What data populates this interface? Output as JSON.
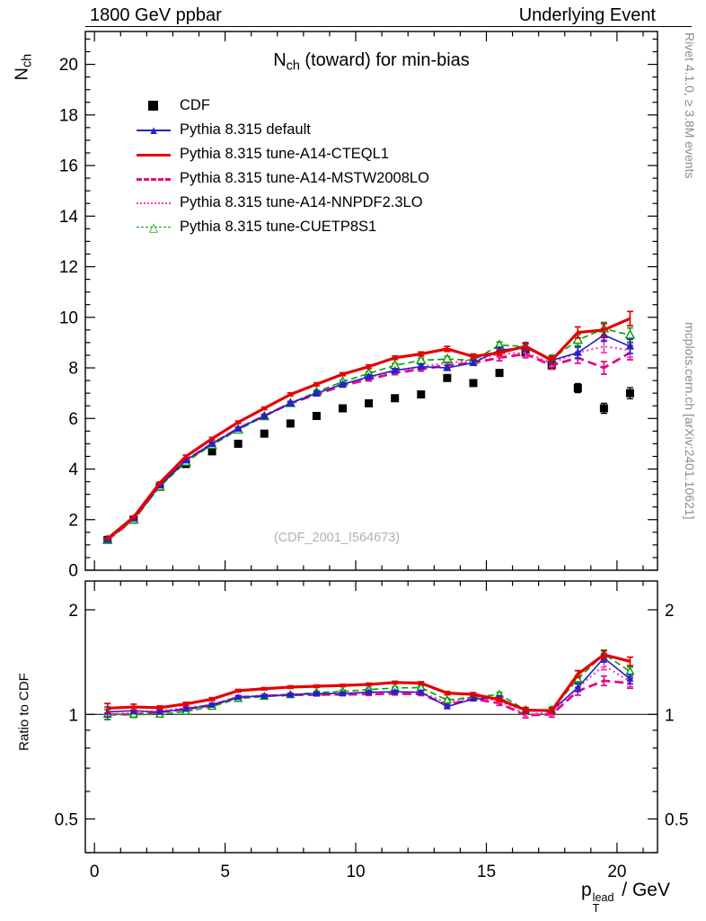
{
  "header": {
    "left": "1800 GeV ppbar",
    "right": "Underlying Event"
  },
  "title": {
    "pre": "N",
    "sub": "ch",
    "post": " (toward) for min-bias"
  },
  "watermark": "(CDF_2001_I564673)",
  "side_notes": {
    "top": "Rivet 4.1.0, ≥ 3.8M events",
    "bottom": "mcplots.cern.ch [arXiv:2401.10621]"
  },
  "axes": {
    "x_label": {
      "pre": "p",
      "sup": "lead",
      "sub": "T",
      "post": " / GeV"
    },
    "y_label": {
      "pre": "N",
      "sub": "ch"
    },
    "ratio_label": "Ratio to CDF",
    "x_ticks": [
      0,
      5,
      10,
      15,
      20
    ],
    "y_ticks": [
      0,
      2,
      4,
      6,
      8,
      10,
      12,
      14,
      16,
      18,
      20
    ],
    "ratio_ticks": [
      "0.5",
      "1",
      "2"
    ]
  },
  "legend": [
    {
      "label": "CDF"
    },
    {
      "label": "Pythia 8.315 default"
    },
    {
      "label": "Pythia 8.315 tune-A14-CTEQL1"
    },
    {
      "label": "Pythia 8.315 tune-A14-MSTW2008LO"
    },
    {
      "label": "Pythia 8.315 tune-A14-NNPDF2.3LO"
    },
    {
      "label": "Pythia 8.315 tune-CUETP8S1"
    }
  ],
  "chart_data": {
    "type": "line",
    "title": "N_ch (toward) for min-bias",
    "xlabel": "p_T^lead / GeV",
    "ylabel": "N_ch",
    "ratio_label": "Ratio to CDF",
    "x_range": [
      -0.35,
      21.55
    ],
    "y_range": [
      0,
      21.3
    ],
    "ratio_range": [
      0.4,
      2.42
    ],
    "ratio_scale": "log",
    "ratio_reference": 1,
    "x": [
      0.5,
      1.5,
      2.5,
      3.5,
      4.5,
      5.5,
      6.5,
      7.5,
      8.5,
      9.5,
      10.5,
      11.5,
      12.5,
      13.5,
      14.5,
      15.5,
      16.5,
      17.5,
      18.5,
      19.5,
      20.5
    ],
    "series": [
      {
        "id": "cdf",
        "name": "CDF",
        "color": "#000000",
        "line": "none",
        "width": 0,
        "marker": "square-filled",
        "msize": 9,
        "values": [
          1.2,
          2.0,
          3.3,
          4.2,
          4.7,
          5.0,
          5.4,
          5.8,
          6.1,
          6.4,
          6.6,
          6.8,
          6.95,
          7.6,
          7.4,
          7.8,
          8.6,
          8.1,
          7.2,
          6.4,
          7.0
        ],
        "errors": [
          0.05,
          0.05,
          0.06,
          0.06,
          0.06,
          0.06,
          0.07,
          0.07,
          0.07,
          0.08,
          0.08,
          0.08,
          0.09,
          0.1,
          0.1,
          0.12,
          0.14,
          0.15,
          0.18,
          0.2,
          0.22
        ]
      },
      {
        "id": "default",
        "name": "Pythia 8.315 default",
        "color": "#2222cc",
        "line": "solid",
        "width": 1.6,
        "marker": "triangle-filled",
        "msize": 8,
        "values": [
          1.22,
          2.05,
          3.35,
          4.35,
          5.0,
          5.6,
          6.1,
          6.6,
          7.0,
          7.35,
          7.65,
          7.9,
          8.05,
          8.0,
          8.2,
          8.7,
          8.8,
          8.3,
          8.6,
          9.3,
          8.85
        ],
        "errors": [
          0.04,
          0.04,
          0.04,
          0.05,
          0.05,
          0.05,
          0.05,
          0.06,
          0.06,
          0.06,
          0.07,
          0.07,
          0.08,
          0.1,
          0.1,
          0.12,
          0.15,
          0.15,
          0.22,
          0.25,
          0.28
        ]
      },
      {
        "id": "a14-cteql1",
        "name": "Pythia 8.315 tune-A14-CTEQL1",
        "color": "#e60000",
        "line": "solid",
        "width": 3.2,
        "marker": "none",
        "msize": 0,
        "values": [
          1.25,
          2.1,
          3.45,
          4.5,
          5.2,
          5.85,
          6.4,
          6.95,
          7.35,
          7.75,
          8.05,
          8.4,
          8.55,
          8.75,
          8.45,
          8.6,
          8.85,
          8.3,
          9.4,
          9.5,
          9.95
        ],
        "errors": [
          0.04,
          0.04,
          0.04,
          0.05,
          0.05,
          0.05,
          0.05,
          0.06,
          0.06,
          0.06,
          0.07,
          0.07,
          0.08,
          0.1,
          0.1,
          0.12,
          0.15,
          0.15,
          0.22,
          0.25,
          0.28
        ]
      },
      {
        "id": "a14-mstw2008lo",
        "name": "Pythia 8.315 tune-A14-MSTW2008LO",
        "color": "#e60884",
        "line": "dashed",
        "width": 2.8,
        "marker": "none",
        "msize": 0,
        "values": [
          1.2,
          2.0,
          3.35,
          4.35,
          5.0,
          5.6,
          6.1,
          6.6,
          6.95,
          7.3,
          7.55,
          7.8,
          7.95,
          8.1,
          8.2,
          8.4,
          8.55,
          8.1,
          8.4,
          8.0,
          8.6
        ],
        "errors": [
          0.04,
          0.04,
          0.04,
          0.05,
          0.05,
          0.05,
          0.05,
          0.06,
          0.06,
          0.06,
          0.07,
          0.07,
          0.08,
          0.1,
          0.1,
          0.12,
          0.15,
          0.15,
          0.22,
          0.25,
          0.28
        ]
      },
      {
        "id": "a14-nnpdf23lo",
        "name": "Pythia 8.315 tune-A14-NNPDF2.3LO",
        "color": "#f33bb8",
        "line": "dotted",
        "width": 2.2,
        "marker": "none",
        "msize": 0,
        "values": [
          1.2,
          2.02,
          3.38,
          4.38,
          5.02,
          5.62,
          6.12,
          6.62,
          7.0,
          7.35,
          7.62,
          7.88,
          8.05,
          8.2,
          8.3,
          8.55,
          8.6,
          8.2,
          8.6,
          8.85,
          8.7
        ],
        "errors": [
          0.04,
          0.04,
          0.04,
          0.05,
          0.05,
          0.05,
          0.05,
          0.06,
          0.06,
          0.06,
          0.07,
          0.07,
          0.08,
          0.1,
          0.1,
          0.12,
          0.15,
          0.15,
          0.22,
          0.25,
          0.28
        ]
      },
      {
        "id": "cuetp8s1",
        "name": "Pythia 8.315 tune-CUETP8S1",
        "color": "#00a000",
        "line": "dashed-fine",
        "width": 1.6,
        "marker": "triangle-open",
        "msize": 8,
        "values": [
          1.2,
          2.0,
          3.3,
          4.28,
          4.95,
          5.55,
          6.08,
          6.6,
          7.05,
          7.45,
          7.78,
          8.1,
          8.3,
          8.35,
          8.3,
          8.9,
          8.85,
          8.35,
          9.1,
          9.55,
          9.3
        ],
        "errors": [
          0.04,
          0.04,
          0.04,
          0.05,
          0.05,
          0.05,
          0.05,
          0.06,
          0.06,
          0.06,
          0.07,
          0.07,
          0.08,
          0.1,
          0.1,
          0.12,
          0.15,
          0.15,
          0.22,
          0.25,
          0.28
        ]
      }
    ]
  }
}
